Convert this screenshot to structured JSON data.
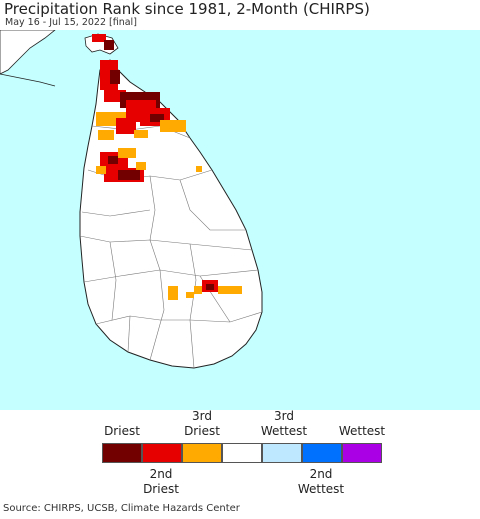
{
  "header": {
    "title": "Precipitation Rank since 1981, 2-Month (CHIRPS)",
    "subtitle": "May 16 - Jul 15, 2022 [final]"
  },
  "map": {
    "ocean_color": "#c5ffff",
    "land_color": "#ffffff",
    "border_color": "#222222",
    "district_color": "#777777"
  },
  "legend": {
    "top_labels": [
      "Driest",
      "3rd\nDriest",
      "3rd\nWettest",
      "Wettest"
    ],
    "bottom_labels": [
      "2nd\nDriest",
      "2nd\nWettest"
    ],
    "colors": [
      "#730000",
      "#e60000",
      "#ffaa00",
      "#ffffff",
      "#bee8ff",
      "#0070ff",
      "#a900e6"
    ]
  },
  "footer": {
    "source": "Source: CHIRPS, UCSB, Climate Hazards Center"
  }
}
